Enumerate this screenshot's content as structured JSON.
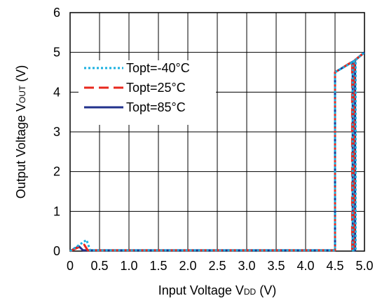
{
  "chart_data": {
    "type": "line",
    "xlabel": {
      "main": "Input Voltage V",
      "sub": "DD",
      "unit": " (V)"
    },
    "ylabel": {
      "main": "Output Voltage V",
      "sub": "OUT",
      "unit": " (V)"
    },
    "xlim": [
      0,
      5
    ],
    "ylim": [
      0,
      6
    ],
    "xticks": [
      "0",
      "0.5",
      "1.0",
      "1.5",
      "2.0",
      "2.5",
      "3.0",
      "3.5",
      "4.0",
      "4.5",
      "5.0"
    ],
    "yticks": [
      "0",
      "1",
      "2",
      "3",
      "4",
      "5",
      "6"
    ],
    "grid": true,
    "legend_position": "upper-left",
    "series": [
      {
        "name": "Topt=-40°C",
        "color": "#1ab0e0",
        "style": "dotted",
        "points": [
          [
            0,
            0
          ],
          [
            0.28,
            0.28
          ],
          [
            0.34,
            0.02
          ],
          [
            4.5,
            0.02
          ],
          [
            4.5,
            4.5
          ],
          [
            4.85,
            4.8
          ],
          [
            4.85,
            0.02
          ],
          [
            4.8,
            0.02
          ],
          [
            4.8,
            4.75
          ],
          [
            5.0,
            5.0
          ]
        ]
      },
      {
        "name": "Topt=25°C",
        "color": "#e8281e",
        "style": "dashed",
        "points": [
          [
            0,
            0
          ],
          [
            0.24,
            0.16
          ],
          [
            0.3,
            0.02
          ],
          [
            4.5,
            0.02
          ],
          [
            4.5,
            4.5
          ],
          [
            4.83,
            4.8
          ],
          [
            4.83,
            0.02
          ],
          [
            4.79,
            0.02
          ],
          [
            4.79,
            4.75
          ],
          [
            5.0,
            5.0
          ]
        ]
      },
      {
        "name": "Topt=85°C",
        "color": "#22328c",
        "style": "solid",
        "points": [
          [
            0,
            0
          ],
          [
            0.15,
            0.12
          ],
          [
            0.22,
            0.02
          ],
          [
            4.5,
            0.02
          ],
          [
            4.5,
            4.5
          ],
          [
            4.84,
            4.8
          ],
          [
            4.84,
            0.02
          ],
          [
            4.8,
            0.02
          ],
          [
            4.8,
            4.75
          ],
          [
            5.0,
            5.0
          ]
        ]
      }
    ]
  }
}
